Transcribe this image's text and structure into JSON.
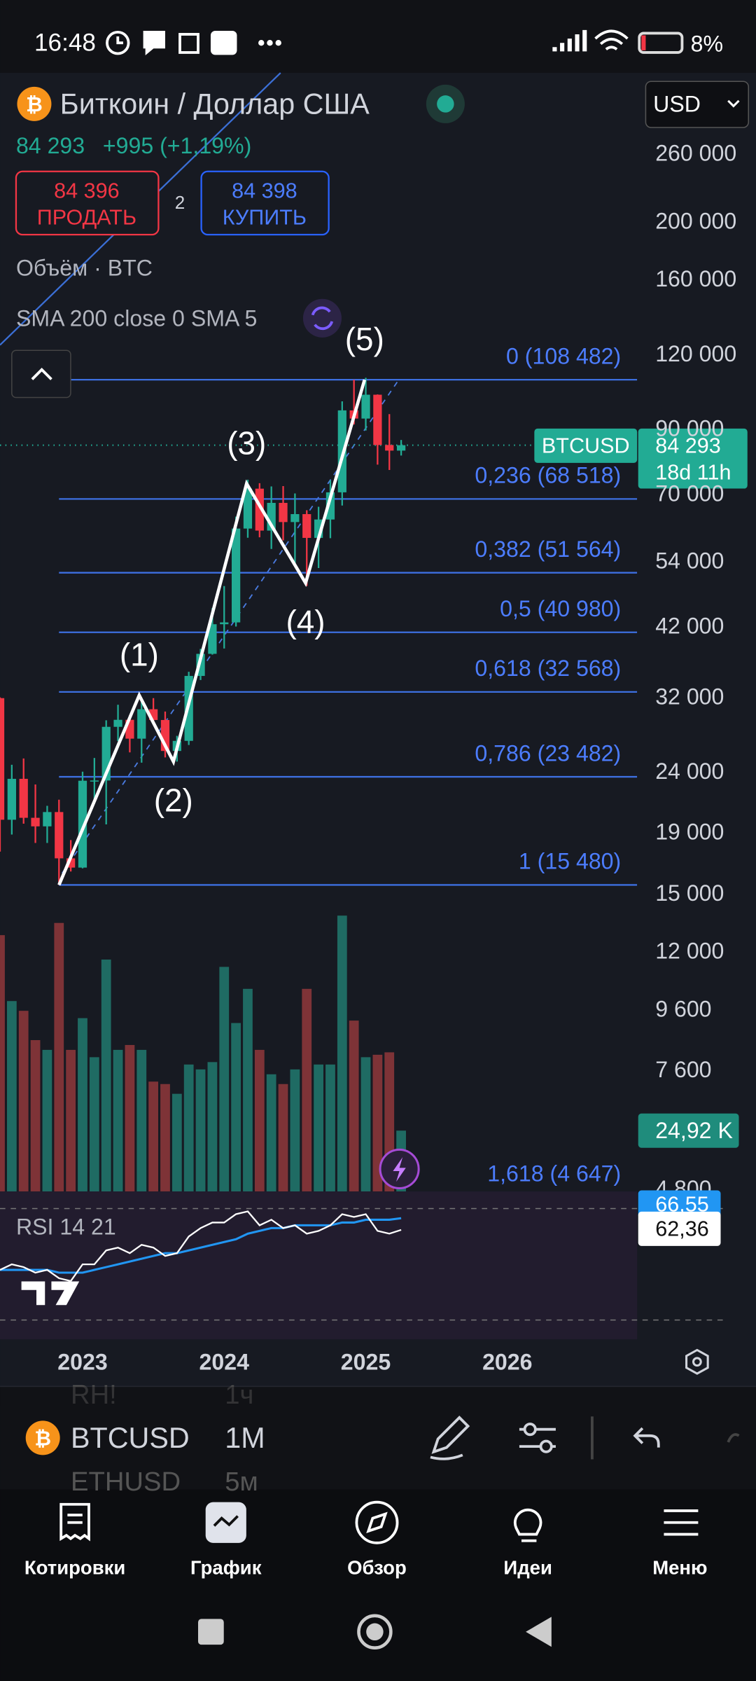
{
  "status_bar": {
    "time": "16:48",
    "battery": "8%"
  },
  "header": {
    "title": "Биткоин / Доллар США",
    "currency": "USD",
    "price": "84 293",
    "change": "+995 (+1,19%)",
    "sell_price": "84 396",
    "sell_label": "ПРОДАТЬ",
    "spread": "2",
    "buy_price": "84 398",
    "buy_label": "КУПИТЬ",
    "volume_indicator": "Объём · BTC",
    "sma_indicator": "SMA 200 close 0 SMA 5"
  },
  "chart_data": {
    "type": "candlestick",
    "scale": "log",
    "grid": false,
    "up_color": "#22ab94",
    "down_color": "#f23645",
    "volume_up_color": "#1f6b63",
    "volume_down_color": "#7e3337",
    "xlim": [
      0,
      54
    ],
    "ylim": [
      4750,
      354000
    ],
    "categories": [
      null,
      null,
      null,
      null,
      null,
      null,
      null,
      null,
      null,
      null,
      null,
      null,
      null,
      null,
      null,
      null,
      null,
      null,
      null,
      null,
      null,
      null,
      null,
      null,
      null,
      null,
      null,
      null,
      null,
      null,
      null,
      null,
      null,
      null,
      null
    ],
    "open": [
      31800,
      19900,
      23300,
      20050,
      19400,
      20500,
      17150,
      16550,
      23130,
      23150,
      28470,
      29250,
      27200,
      30470,
      29230,
      25940,
      26970,
      34640,
      37720,
      42280,
      42580,
      61130,
      71290,
      60650,
      67490,
      62680,
      64630,
      58970,
      63300,
      70290,
      96400,
      93400,
      102400,
      84350,
      82550
    ],
    "high": [
      31900,
      24600,
      25200,
      22800,
      21000,
      21500,
      18400,
      23950,
      25250,
      29200,
      31000,
      29800,
      31400,
      31800,
      30200,
      27500,
      35200,
      38450,
      45000,
      48970,
      64000,
      73800,
      72800,
      71900,
      72000,
      70000,
      65600,
      66500,
      73600,
      99800,
      108482,
      109300,
      102500,
      95000,
      86000
    ],
    "low": [
      17600,
      18800,
      19600,
      18200,
      18200,
      15480,
      16300,
      16500,
      21350,
      19550,
      26950,
      25800,
      24800,
      28850,
      25300,
      24900,
      26550,
      34100,
      37600,
      38500,
      41900,
      59000,
      59100,
      56500,
      58400,
      53500,
      49000,
      52500,
      58900,
      66800,
      91300,
      89200,
      78200,
      76600,
      81000
    ],
    "close": [
      19900,
      23300,
      20050,
      19400,
      20500,
      17150,
      16550,
      23130,
      23150,
      28470,
      29250,
      27200,
      30470,
      29230,
      25940,
      26970,
      34640,
      37720,
      42280,
      42580,
      61130,
      71290,
      60650,
      67490,
      62680,
      64630,
      58970,
      63300,
      70290,
      96400,
      93400,
      102400,
      84350,
      82550,
      84293
    ],
    "volume": [
      105000,
      78000,
      74000,
      62000,
      58000,
      110000,
      58000,
      71000,
      55000,
      95000,
      58000,
      60000,
      58000,
      45000,
      44000,
      40000,
      52000,
      50000,
      53000,
      92000,
      69000,
      83000,
      58000,
      48000,
      44000,
      50000,
      83000,
      52000,
      52000,
      113000,
      70000,
      55000,
      56000,
      57000,
      24920
    ],
    "volume_ylim": [
      0,
      115000
    ],
    "volume_label": "24,92 K",
    "yticks": [
      {
        "value": 260000,
        "label": "260 000"
      },
      {
        "value": 200000,
        "label": "200 000"
      },
      {
        "value": 160000,
        "label": "160 000"
      },
      {
        "value": 120000,
        "label": "120 000"
      },
      {
        "value": 90000,
        "label": "90 000"
      },
      {
        "value": 70000,
        "label": "70 000"
      },
      {
        "value": 54000,
        "label": "54 000"
      },
      {
        "value": 42000,
        "label": "42 000"
      },
      {
        "value": 32000,
        "label": "32 000"
      },
      {
        "value": 24000,
        "label": "24 000"
      },
      {
        "value": 19000,
        "label": "19 000"
      },
      {
        "value": 15000,
        "label": "15 000"
      },
      {
        "value": 12000,
        "label": "12 000"
      },
      {
        "value": 9600,
        "label": "9 600"
      },
      {
        "value": 7600,
        "label": "7 600"
      },
      {
        "value": 4800,
        "label": "4 800"
      }
    ],
    "xticks": [
      {
        "value": 7,
        "label": "2023"
      },
      {
        "value": 19,
        "label": "2024"
      },
      {
        "value": 31,
        "label": "2025"
      },
      {
        "value": 43,
        "label": "2026"
      }
    ],
    "fib_levels": [
      {
        "value": 108482,
        "label": "0 (108 482)"
      },
      {
        "value": 68518,
        "label": "0,236 (68 518)"
      },
      {
        "value": 51564,
        "label": "0,382 (51 564)"
      },
      {
        "value": 40980,
        "label": "0,5 (40 980)"
      },
      {
        "value": 32568,
        "label": "0,618 (32 568)"
      },
      {
        "value": 23482,
        "label": "0,786 (23 482)"
      },
      {
        "value": 15480,
        "label": "1 (15 480)"
      },
      {
        "value": 4647,
        "label": "1,618 (4 647)"
      }
    ],
    "waves": {
      "labels": [
        null,
        "(1)",
        "(2)",
        "(3)",
        "(4)",
        "(5)"
      ],
      "x": [
        5,
        11.8,
        14.7,
        20.9,
        25.9,
        30.9
      ],
      "y": [
        15480,
        32150,
        24900,
        72700,
        49560,
        108482
      ]
    },
    "last_price": 84293,
    "price_tag": {
      "symbol": "BTCUSD",
      "price": "84 293",
      "countdown": "18d 11h"
    },
    "rsi": {
      "title": "RSI 14 21",
      "ylim": [
        30,
        70
      ],
      "values": [
        48,
        50,
        49,
        47,
        48,
        45,
        44,
        50,
        50,
        55,
        56,
        54,
        57,
        56,
        53,
        54,
        60,
        63,
        65,
        65,
        68,
        69,
        64,
        66,
        63,
        64,
        61,
        62,
        64,
        68,
        67,
        68,
        62,
        61,
        62.36
      ],
      "ma": [
        48,
        48,
        48,
        48,
        48,
        47,
        47,
        47,
        48,
        49,
        50,
        51,
        52,
        53,
        54,
        54,
        55,
        56,
        57,
        58,
        59,
        61,
        62,
        63,
        63,
        64,
        64,
        64,
        64,
        65,
        65,
        66,
        66,
        66,
        66.55
      ],
      "value_label": "62,36",
      "ma_label": "66,55"
    }
  },
  "toolbar": {
    "symbol": "BTCUSD",
    "interval": "1M",
    "ghost_symbol_above": "RH!",
    "ghost_interval_above": "1ч",
    "ghost_symbol_below": "ETHUSD",
    "ghost_interval_below": "5м"
  },
  "nav": {
    "items": [
      "Котировки",
      "График",
      "Обзор",
      "Идеи",
      "Меню"
    ]
  }
}
